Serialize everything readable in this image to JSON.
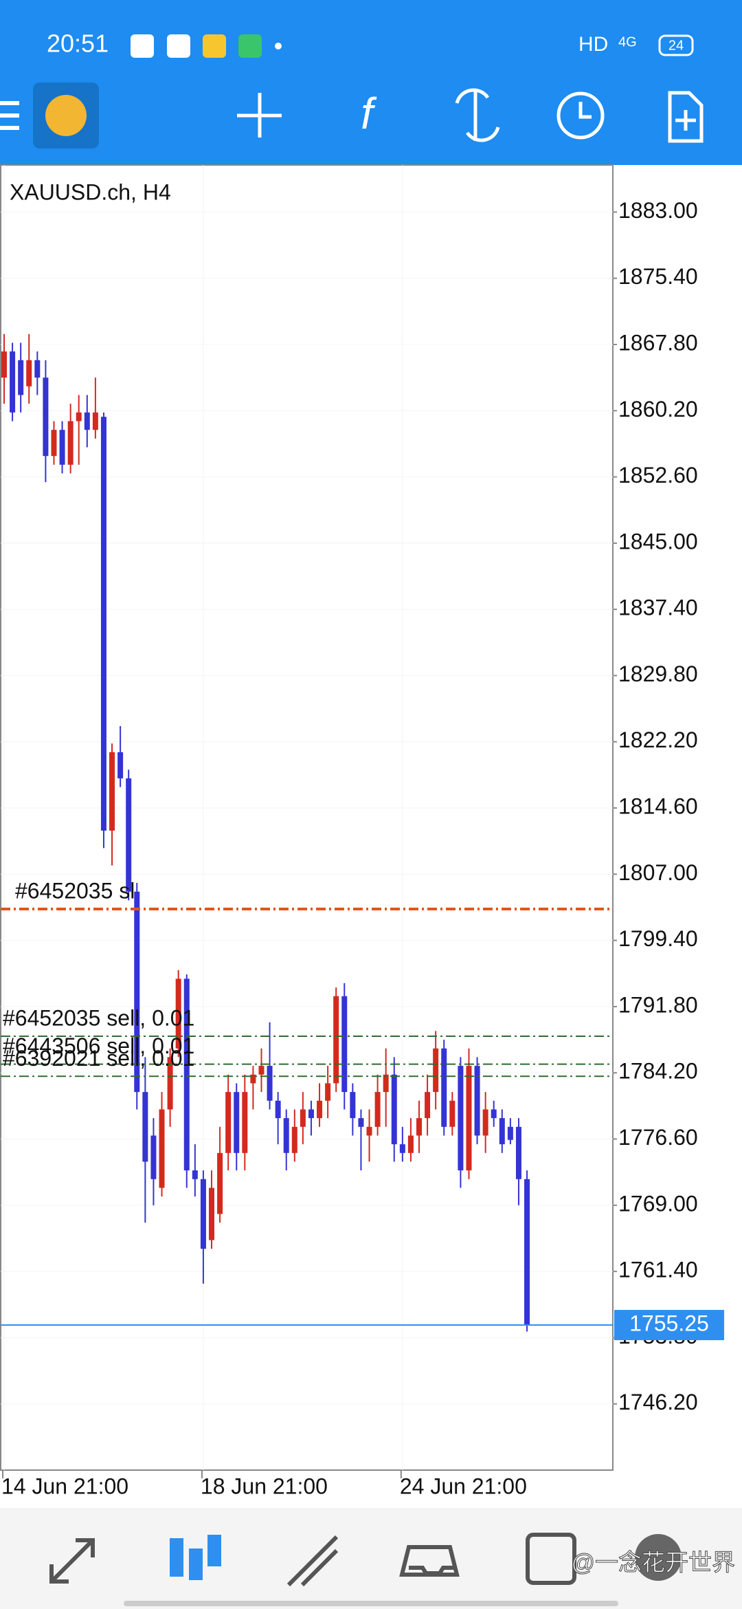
{
  "status_bar": {
    "time": "20:51",
    "network": "HD",
    "signal": "4G",
    "battery": "24"
  },
  "chart_data": {
    "type": "candlestick",
    "title": "XAUUSD.ch, H4",
    "categories": [
      "14 Jun 21:00",
      null,
      null,
      null,
      null,
      null,
      null,
      null,
      null,
      null,
      null,
      null,
      null,
      null,
      null,
      null,
      null,
      null,
      null,
      null,
      null,
      null,
      null,
      null,
      "18 Jun 21:00",
      null,
      null,
      null,
      null,
      null,
      null,
      null,
      null,
      null,
      null,
      null,
      null,
      null,
      null,
      null,
      null,
      null,
      null,
      null,
      null,
      null,
      null,
      null,
      "24 Jun 21:00",
      null,
      null,
      null,
      null,
      null,
      null,
      null,
      null,
      null,
      null,
      null,
      null,
      null,
      null,
      null
    ],
    "open": [
      1864,
      1867,
      1866,
      1863,
      1866,
      1864,
      1855,
      1858,
      1854,
      1859,
      1860,
      1858,
      1859.5,
      1812,
      1821,
      1818,
      1805,
      1782,
      1777,
      1771,
      1780,
      1787,
      1795,
      1773,
      1772,
      1765,
      1768,
      1775,
      1782,
      1775,
      1783,
      1784,
      1785,
      1781,
      1779,
      1775,
      1778,
      1780,
      1779,
      1781,
      1783,
      1793,
      1782,
      1779,
      1777,
      1778,
      1782,
      1784,
      1776,
      1775,
      1777,
      1779,
      1782,
      1787,
      1778,
      1785,
      1773,
      1785,
      1777,
      1780,
      1779,
      1778,
      1778,
      1772
    ],
    "high": [
      1869,
      1868,
      1868,
      1869,
      1867,
      1866,
      1859,
      1859,
      1861,
      1862,
      1862,
      1864,
      1860,
      1822,
      1824,
      1819,
      1806,
      1786,
      1779,
      1782,
      1787,
      1796,
      1795.5,
      1776,
      1773,
      1773,
      1778,
      1784,
      1783,
      1784,
      1785,
      1787,
      1790,
      1782,
      1780,
      1780,
      1782,
      1781,
      1783,
      1785,
      1794,
      1794.5,
      1783,
      1780,
      1780,
      1784,
      1787,
      1786,
      1778,
      1779,
      1781,
      1784,
      1789,
      1788,
      1782,
      1786,
      1787,
      1786,
      1782,
      1781,
      1780,
      1779,
      1779,
      1773
    ],
    "low": [
      1861,
      1859,
      1860,
      1861,
      1862,
      1852,
      1854,
      1853,
      1853,
      1854,
      1856,
      1857,
      1810,
      1808,
      1817,
      1804,
      1780,
      1767,
      1769,
      1770,
      1778,
      1786,
      1771,
      1770,
      1760,
      1764,
      1767,
      1773,
      1773,
      1773,
      1780,
      1782,
      1780,
      1776,
      1773,
      1774,
      1776,
      1777,
      1778,
      1779,
      1782,
      1780,
      1777,
      1773,
      1774,
      1777,
      1778,
      1774,
      1774,
      1774,
      1775,
      1777,
      1780,
      1777,
      1777,
      1771,
      1772,
      1776,
      1775,
      1778,
      1775,
      1776,
      1769,
      1754.5
    ],
    "close": [
      1867,
      1860,
      1862,
      1866,
      1864,
      1855,
      1858,
      1854,
      1859,
      1860,
      1858,
      1860,
      1812,
      1821,
      1818,
      1805,
      1782,
      1774,
      1772,
      1780,
      1786,
      1795,
      1773,
      1772,
      1764,
      1771,
      1775,
      1782,
      1775,
      1782,
      1784,
      1785,
      1781,
      1779,
      1775,
      1778,
      1780,
      1779,
      1781,
      1783,
      1793,
      1782,
      1779,
      1778,
      1778,
      1782,
      1784,
      1776,
      1775,
      1777,
      1779,
      1782,
      1787,
      1778,
      1781,
      1773,
      1785,
      1777,
      1780,
      1779,
      1776,
      1776.5,
      1772,
      1755.25
    ],
    "bull_color": "#d32a1e",
    "bear_color": "#3434d4",
    "ylim": [
      1738.6,
      1888.4
    ],
    "yticks": [
      {
        "value": 1883,
        "label": "1883.00"
      },
      {
        "value": 1875.4,
        "label": "1875.40"
      },
      {
        "value": 1867.8,
        "label": "1867.80"
      },
      {
        "value": 1860.2,
        "label": "1860.20"
      },
      {
        "value": 1852.6,
        "label": "1852.60"
      },
      {
        "value": 1845,
        "label": "1845.00"
      },
      {
        "value": 1837.4,
        "label": "1837.40"
      },
      {
        "value": 1829.8,
        "label": "1829.80"
      },
      {
        "value": 1822.2,
        "label": "1822.20"
      },
      {
        "value": 1814.6,
        "label": "1814.60"
      },
      {
        "value": 1807,
        "label": "1807.00"
      },
      {
        "value": 1799.4,
        "label": "1799.40"
      },
      {
        "value": 1791.8,
        "label": "1791.80"
      },
      {
        "value": 1784.2,
        "label": "1784.20"
      },
      {
        "value": 1776.6,
        "label": "1776.60"
      },
      {
        "value": 1769,
        "label": "1769.00"
      },
      {
        "value": 1761.4,
        "label": "1761.40"
      },
      {
        "value": 1753.8,
        "label": "1753.80"
      },
      {
        "value": 1746.2,
        "label": "1746.20"
      }
    ],
    "grid": true,
    "levels": [
      {
        "label": "#6452035 sl",
        "value": 1803.0,
        "color": "#e0561c"
      },
      {
        "label": "#6452035 sell, 0.01",
        "value": 1788.4,
        "color": "#2e6b2e"
      },
      {
        "label": "#6443506 sell, 0.01",
        "value": 1785.2,
        "color": "#2e6b2e"
      },
      {
        "label": "#6392021 sell, 0.01",
        "value": 1783.8,
        "color": "#2e6b2e"
      }
    ],
    "current_price": 1755.25,
    "current_color": "#2f8ff0"
  },
  "watermark": "@一念花开世界"
}
